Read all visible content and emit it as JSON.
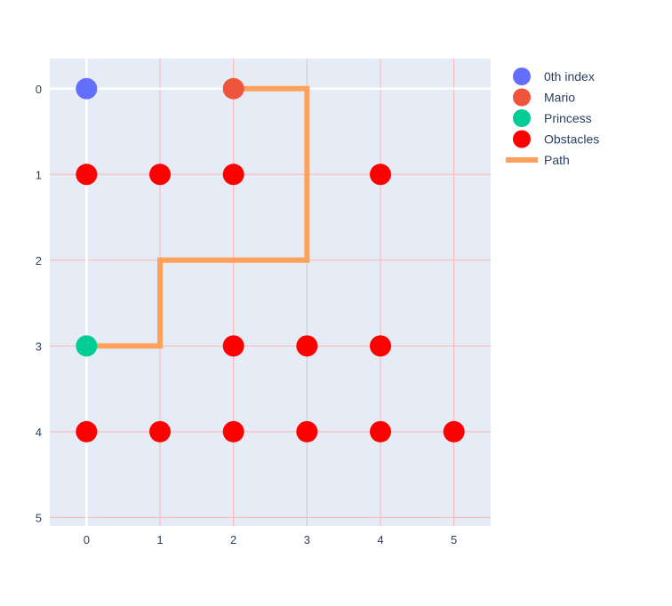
{
  "chart_data": {
    "type": "scatter",
    "title": "",
    "xlabel": "",
    "ylabel": "",
    "xlim": [
      -0.5,
      5.5
    ],
    "ylim": [
      5.1,
      -0.35
    ],
    "y_reversed": true,
    "x_ticks": [
      0,
      1,
      2,
      3,
      4,
      5
    ],
    "y_ticks": [
      0,
      1,
      2,
      3,
      4,
      5
    ],
    "grid": true,
    "legend_position": "top-right",
    "background": "#e5ecf6",
    "grid_color": "#ffb3b3",
    "zero_line_color": "#ffffff",
    "series": [
      {
        "name": "0th index",
        "mode": "markers",
        "color": "#636efa",
        "points": [
          [
            0,
            0
          ]
        ]
      },
      {
        "name": "Mario",
        "mode": "markers",
        "color": "#ef553b",
        "points": [
          [
            2,
            0
          ]
        ]
      },
      {
        "name": "Princess",
        "mode": "markers",
        "color": "#00cc96",
        "points": [
          [
            0,
            3
          ]
        ]
      },
      {
        "name": "Obstacles",
        "mode": "markers",
        "color": "#ff0000",
        "points": [
          [
            0,
            1
          ],
          [
            1,
            1
          ],
          [
            2,
            1
          ],
          [
            4,
            1
          ],
          [
            2,
            3
          ],
          [
            3,
            3
          ],
          [
            4,
            3
          ],
          [
            0,
            4
          ],
          [
            1,
            4
          ],
          [
            2,
            4
          ],
          [
            3,
            4
          ],
          [
            4,
            4
          ],
          [
            5,
            4
          ]
        ]
      },
      {
        "name": "Path",
        "mode": "lines",
        "color": "#ffa15a",
        "points": [
          [
            2,
            0
          ],
          [
            3,
            0
          ],
          [
            3,
            1
          ],
          [
            3,
            2
          ],
          [
            2,
            2
          ],
          [
            1,
            2
          ],
          [
            1,
            3
          ],
          [
            0,
            3
          ]
        ]
      }
    ]
  }
}
